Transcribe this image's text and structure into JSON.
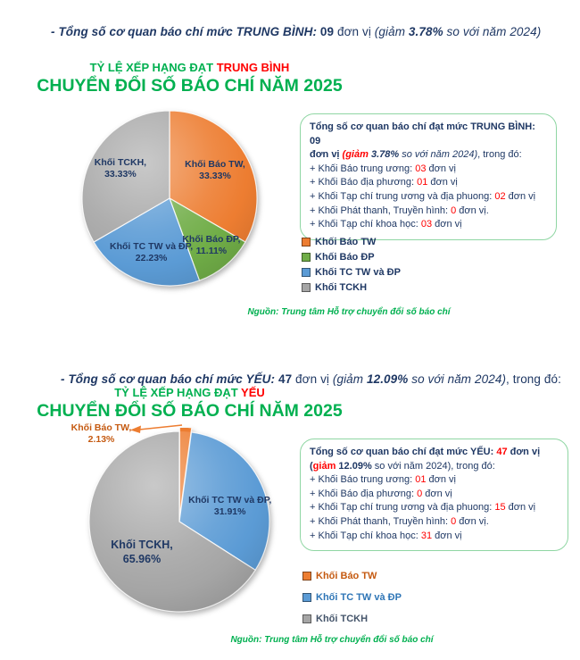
{
  "colors": {
    "navy": "#1F3864",
    "red": "#FF0000",
    "green_title": "#00B050",
    "source_green": "#00B050",
    "box_border": "#8FD6A3",
    "orange": "#ED7D31",
    "orange_text": "#C55A11",
    "green": "#70AD47",
    "blue": "#5B9BD5",
    "blue_text": "#2E75B6",
    "gray": "#A5A5A5",
    "gray_text": "#44546A"
  },
  "headings": {
    "medium": {
      "p1": "- Tổng số cơ quan báo chí mức TRUNG BÌNH: ",
      "p2": "09",
      "p3": " đơn vị ",
      "p4": "(giảm ",
      "p5": "3.78%",
      "p6": " so với năm 2024)"
    },
    "weak": {
      "p1": "- Tổng số cơ quan báo chí mức YẾU: ",
      "p2": "47",
      "p3": " đơn vị ",
      "p4": "(giảm ",
      "p5": "12.09%",
      "p6": " so với năm 2024)",
      "p7": ", trong đó:"
    }
  },
  "chart_data": [
    {
      "type": "pie",
      "title_prefix": "TỶ LỆ XẾP HẠNG ĐẠT ",
      "title_highlight": "TRUNG BÌNH",
      "title_line2": "CHUYỂN ĐỔI SỐ BÁO CHÍ NĂM 2025",
      "slices": [
        {
          "name": "Khối Báo TW",
          "value": 33.33,
          "color": "orange",
          "label_line1": "Khối Báo TW,",
          "label_line2": "33.33%"
        },
        {
          "name": "Khối Báo ĐP",
          "value": 11.11,
          "color": "green",
          "label_line1": "Khối Báo ĐP,",
          "label_line2": "11.11%"
        },
        {
          "name": "Khối TC TW và ĐP",
          "value": 22.23,
          "color": "blue",
          "label_line1": "Khối TC TW và ĐP,",
          "label_line2": "22.23%"
        },
        {
          "name": "Khối TCKH",
          "value": 33.33,
          "color": "gray",
          "label_line1": "Khối TCKH,",
          "label_line2": "33.33%"
        }
      ],
      "legend": [
        {
          "label": "Khối Báo TW",
          "color": "orange"
        },
        {
          "label": "Khối Báo ĐP",
          "color": "green"
        },
        {
          "label": "Khối TC TW và ĐP",
          "color": "blue"
        },
        {
          "label": "Khối TCKH",
          "color": "gray"
        }
      ],
      "legend_position": "right",
      "source": "Nguồn: Trung tâm Hỗ trợ chuyển đổi số báo chí"
    },
    {
      "type": "pie",
      "title_prefix": "TỶ LỆ XẾP HẠNG ĐẠT ",
      "title_highlight": "YẾU",
      "title_line2": "CHUYỂN ĐỔI SỐ BÁO CHÍ NĂM 2025",
      "slices": [
        {
          "name": "Khối Báo TW",
          "value": 2.13,
          "color": "orange",
          "explode": 5,
          "label_outside": true,
          "label_line1": "Khối Báo TW,",
          "label_line2": "2.13%"
        },
        {
          "name": "Khối TC TW và ĐP",
          "value": 31.91,
          "color": "blue",
          "label_line1": "Khối TC TW và ĐP,",
          "label_line2": "31.91%"
        },
        {
          "name": "Khối TCKH",
          "value": 65.96,
          "color": "gray",
          "label_line1": "Khối TCKH,",
          "label_line2": "65.96%"
        }
      ],
      "legend": [
        {
          "label": "Khối Báo TW",
          "color": "orange",
          "text_color": "orange_text"
        },
        {
          "label": "Khối TC TW và ĐP",
          "color": "blue",
          "text_color": "blue_text"
        },
        {
          "label": "Khối TCKH",
          "color": "gray",
          "text_color": "gray_text"
        }
      ],
      "legend_position": "right",
      "source": "Nguồn: Trung tâm Hỗ trợ chuyển đổi số báo chí"
    }
  ],
  "info_boxes": [
    {
      "intro": {
        "p1": "Tổng số cơ quan báo chí đạt mức TRUNG BÌNH: 09",
        "p2": "đơn vị ",
        "p3": "(giảm ",
        "p4": "3.78% ",
        "p5": "so với năm 2024)",
        "p6": ", trong đó:"
      },
      "items": [
        {
          "pre": "+ Khối Báo trung ương: ",
          "num": "03",
          "suf": " đơn vị"
        },
        {
          "pre": "+ Khối Báo địa phương: ",
          "num": "01",
          "suf": " đơn vị"
        },
        {
          "pre": "+ Khối Tạp chí trung ương và địa phuong: ",
          "num": "02",
          "suf": " đơn vị"
        },
        {
          "pre": "+ Khối Phát thanh, Truyền hình: ",
          "num": "0",
          "suf": " đơn vị."
        },
        {
          "pre": "+ Khối Tạp chí khoa học: ",
          "num": "03",
          "suf": " đơn vị"
        }
      ]
    },
    {
      "intro": {
        "p1": "Tổng số cơ quan báo chí đạt mức YẾU: ",
        "p2": "47",
        "p3": " đơn vị",
        "p4": "(",
        "p5": "giảm",
        "p6": " 12.09% ",
        "p7": "so với năm 2024), trong đó:"
      },
      "items": [
        {
          "pre": "+ Khối Báo trung ương: ",
          "num": "01",
          "suf": " đơn vị"
        },
        {
          "pre": "+ Khối Báo địa phương: ",
          "num": "0",
          "suf": " đơn vị"
        },
        {
          "pre": "+ Khối Tạp chí trung ương và địa phuong: ",
          "num": "15",
          "suf": " đơn vị"
        },
        {
          "pre": "+ Khối Phát thanh, Truyền hình: ",
          "num": "0",
          "suf": " đơn vị."
        },
        {
          "pre": "+ Khối Tạp chí khoa học: ",
          "num": "31",
          "suf": " đơn vị"
        }
      ]
    }
  ]
}
